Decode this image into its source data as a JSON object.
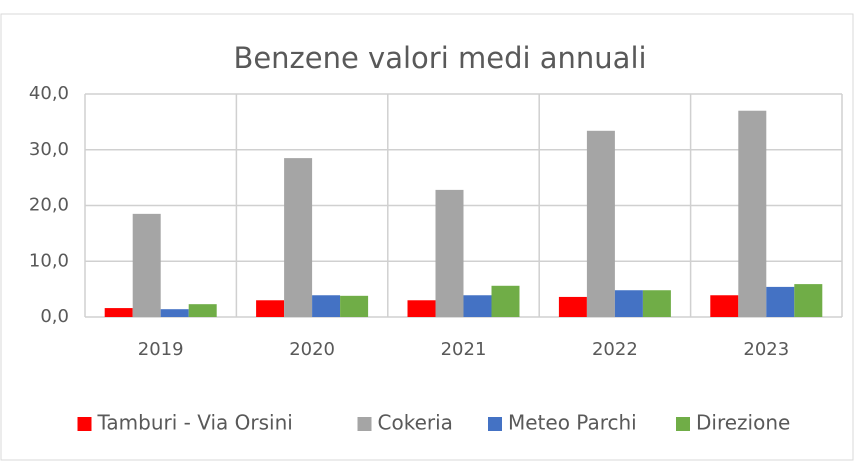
{
  "chart_data": {
    "type": "bar",
    "title": "Benzene valori medi annuali",
    "categories": [
      "2019",
      "2020",
      "2021",
      "2022",
      "2023"
    ],
    "series": [
      {
        "name": "Tamburi - Via Orsini",
        "color": "#ff0000",
        "values": [
          1.6,
          3.0,
          3.0,
          3.6,
          3.9
        ]
      },
      {
        "name": "Cokeria",
        "color": "#a5a5a5",
        "values": [
          18.5,
          28.5,
          22.8,
          33.4,
          37.0
        ]
      },
      {
        "name": "Meteo Parchi",
        "color": "#4472c4",
        "values": [
          1.4,
          3.9,
          3.9,
          4.8,
          5.4
        ]
      },
      {
        "name": "Direzione",
        "color": "#70ad47",
        "values": [
          2.3,
          3.8,
          5.6,
          4.8,
          5.9
        ]
      }
    ],
    "ylim": [
      0,
      40
    ],
    "yticks": [
      {
        "value": 0,
        "label": "0,0"
      },
      {
        "value": 10,
        "label": "10,0"
      },
      {
        "value": 20,
        "label": "20,0"
      },
      {
        "value": 30,
        "label": "30,0"
      },
      {
        "value": 40,
        "label": "40,0"
      }
    ],
    "grid": true,
    "legend": "bottom"
  }
}
